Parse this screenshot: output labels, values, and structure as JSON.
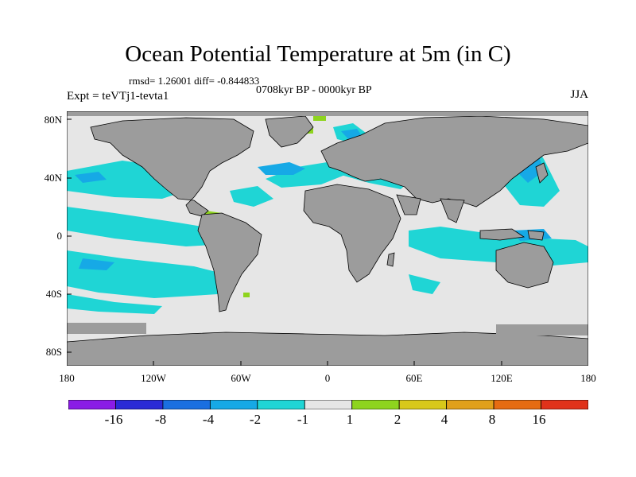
{
  "title": "Ocean Potential Temperature at 5m (in C)",
  "stats": "rmsd= 1.26001 diff= -0.844833",
  "period": "0708kyr BP - 0000kyr BP",
  "experiment": "Expt = teVTj1-tevta1",
  "season": "JJA",
  "lat_labels": [
    "80N",
    "40N",
    "0",
    "40S",
    "80S"
  ],
  "lon_labels": [
    "180",
    "120W",
    "60W",
    "0",
    "60E",
    "120E",
    "180"
  ],
  "colorbar": {
    "labels": [
      "-16",
      "-8",
      "-4",
      "-2",
      "-1",
      "1",
      "2",
      "4",
      "8",
      "16"
    ],
    "colors": [
      "#8a1ce6",
      "#2a2ad6",
      "#1a6fe0",
      "#16a9e6",
      "#1fd5d5",
      "#e6e6e6",
      "#8ed41e",
      "#d8c81a",
      "#e0a01a",
      "#e66c12",
      "#e0321a"
    ]
  },
  "colors": {
    "land": "#9c9c9c",
    "ocean_neutral": "#e6e6e6",
    "cool_minus1": "#1fd5d5",
    "cool_minus2": "#16a9e6",
    "warm_plus1": "#8ed41e"
  }
}
